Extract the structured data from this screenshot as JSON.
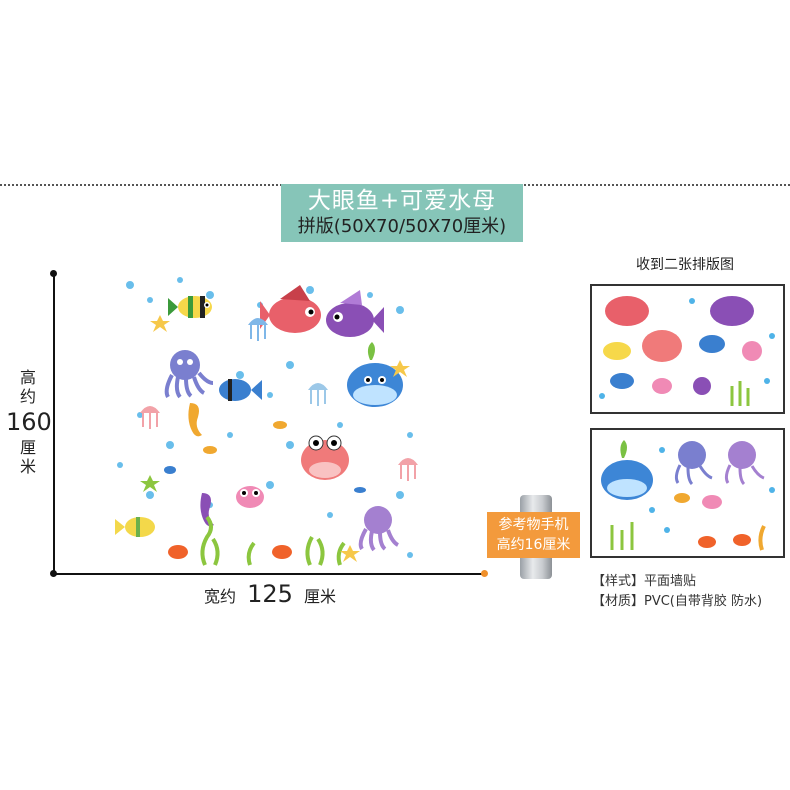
{
  "title": {
    "main": "大眼鱼+可爱水母",
    "sub": "拼版(50X70/50X70厘米)"
  },
  "dimensions": {
    "height_prefix": "高约",
    "height_value": "160",
    "height_unit": "厘米",
    "width_prefix": "宽约",
    "width_value": "125",
    "width_unit": "厘米"
  },
  "phone_reference": {
    "line1": "参考物手机",
    "line2": "高约16厘米"
  },
  "side_panel": {
    "title": "收到二张排版图"
  },
  "specs": [
    "【样式】平面墙贴",
    "【材质】PVC(自带背胶 防水)"
  ],
  "colors": {
    "title_bg": "#86c5b8",
    "phone_label_bg": "#f39a3c",
    "axis": "#111111",
    "bubble": "#4fb3e8"
  }
}
